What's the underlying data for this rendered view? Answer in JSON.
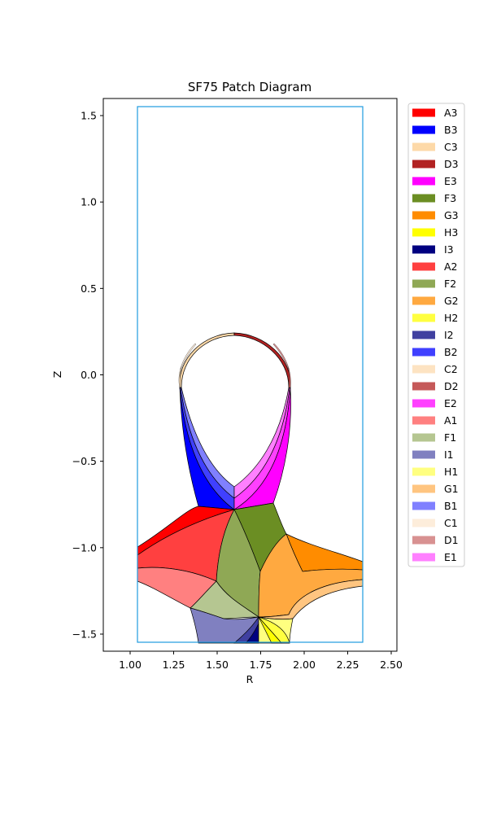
{
  "figure": {
    "title": "SF75 Patch Diagram",
    "xlabel": "R",
    "ylabel": "Z"
  },
  "chart_data": {
    "type": "diagram",
    "title": "SF75 Patch Diagram",
    "xlabel": "R",
    "ylabel": "Z",
    "xlim": [
      0.85,
      2.52
    ],
    "ylim": [
      -1.6,
      1.6
    ],
    "x_ticks": [
      "1.00",
      "1.25",
      "1.50",
      "1.75",
      "2.00",
      "2.25",
      "2.50"
    ],
    "y_ticks": [
      "1.5",
      "1.0",
      "0.5",
      "0.0",
      "−0.5",
      "−1.0",
      "−1.5"
    ],
    "boundary_color": "#1f9be0",
    "legend_placement": "right, outside plot",
    "legend": [
      {
        "label": "A3",
        "color": "#ff0000"
      },
      {
        "label": "B3",
        "color": "#0000ff"
      },
      {
        "label": "C3",
        "color": "#fdd9a8"
      },
      {
        "label": "D3",
        "color": "#b22222"
      },
      {
        "label": "E3",
        "color": "#ff00ff"
      },
      {
        "label": "F3",
        "color": "#6b8e23"
      },
      {
        "label": "G3",
        "color": "#ff8c00"
      },
      {
        "label": "H3",
        "color": "#ffff00"
      },
      {
        "label": "I3",
        "color": "#000080"
      },
      {
        "label": "A2",
        "color": "#ff4040"
      },
      {
        "label": "F2",
        "color": "#8fa855"
      },
      {
        "label": "G2",
        "color": "#ffa940"
      },
      {
        "label": "H2",
        "color": "#ffff40"
      },
      {
        "label": "I2",
        "color": "#4040a0"
      },
      {
        "label": "B2",
        "color": "#4040ff"
      },
      {
        "label": "C2",
        "color": "#fde3c2"
      },
      {
        "label": "D2",
        "color": "#c55959"
      },
      {
        "label": "E2",
        "color": "#ff40ff"
      },
      {
        "label": "A1",
        "color": "#ff8080"
      },
      {
        "label": "F1",
        "color": "#b5c691"
      },
      {
        "label": "I1",
        "color": "#8080c0"
      },
      {
        "label": "H1",
        "color": "#ffff80"
      },
      {
        "label": "G1",
        "color": "#ffc580"
      },
      {
        "label": "B1",
        "color": "#8080ff"
      },
      {
        "label": "C1",
        "color": "#fdeddb"
      },
      {
        "label": "D1",
        "color": "#d89191"
      },
      {
        "label": "E1",
        "color": "#ff80ff"
      }
    ]
  }
}
